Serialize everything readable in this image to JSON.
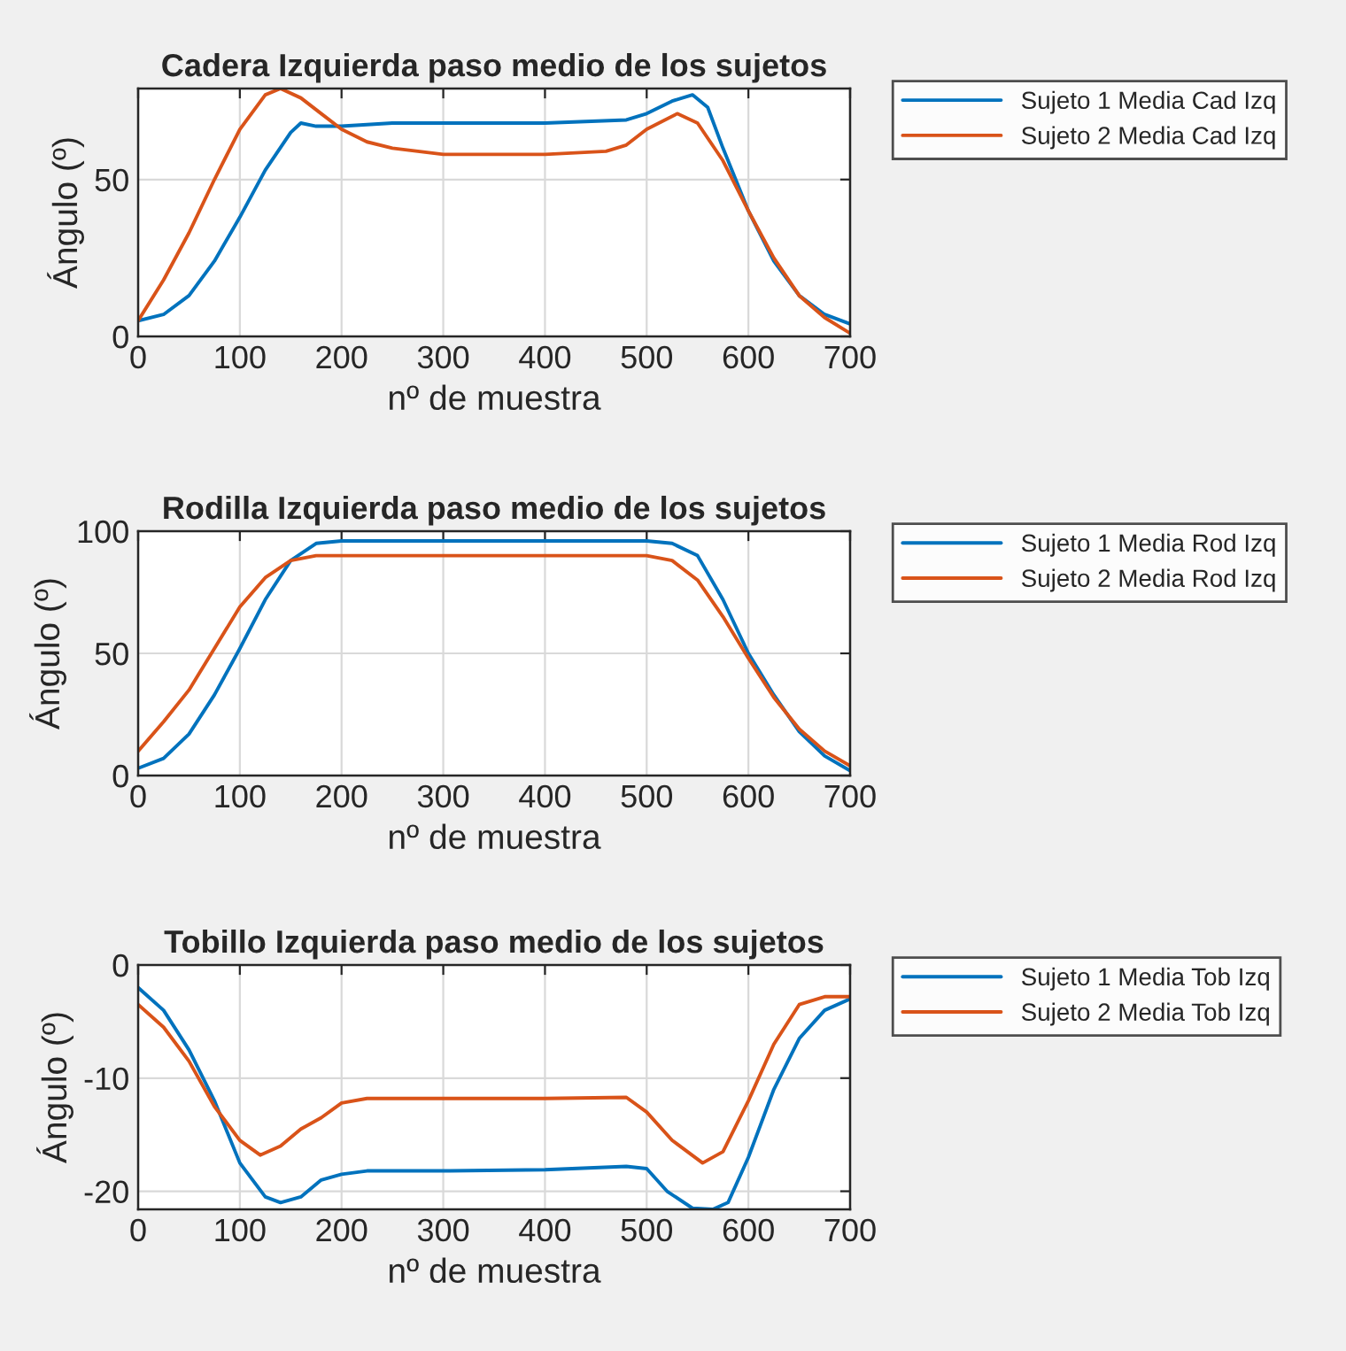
{
  "chart_data": [
    {
      "type": "line",
      "title": "Cadera Izquierda paso medio de los sujetos",
      "xlabel": "nº de muestra",
      "ylabel": "Ángulo (º)",
      "xlim": [
        0,
        700
      ],
      "xticks": [
        0,
        100,
        200,
        300,
        400,
        500,
        600,
        700
      ],
      "ylim": [
        0,
        79
      ],
      "yticks": [
        0,
        50
      ],
      "grid": true,
      "legend": "right",
      "series": [
        {
          "name": "Sujeto 1 Media Cad Izq",
          "color": "#0072bd",
          "x": [
            0,
            25,
            50,
            75,
            100,
            125,
            150,
            160,
            175,
            200,
            250,
            300,
            400,
            480,
            500,
            525,
            545,
            560,
            575,
            600,
            625,
            650,
            675,
            700
          ],
          "values": [
            5,
            7,
            13,
            24,
            38,
            53,
            65,
            68,
            67,
            67,
            68,
            68,
            68,
            69,
            71,
            75,
            77,
            73,
            60,
            40,
            24,
            13,
            7,
            4
          ]
        },
        {
          "name": "Sujeto 2 Media Cad Izq",
          "color": "#d95319",
          "x": [
            0,
            25,
            50,
            75,
            100,
            125,
            140,
            160,
            180,
            200,
            225,
            250,
            300,
            400,
            460,
            480,
            500,
            530,
            550,
            575,
            600,
            625,
            650,
            675,
            700
          ],
          "values": [
            5,
            18,
            33,
            50,
            66,
            77,
            79,
            76,
            71,
            66,
            62,
            60,
            58,
            58,
            59,
            61,
            66,
            71,
            68,
            56,
            40,
            25,
            13,
            6,
            1
          ]
        }
      ]
    },
    {
      "type": "line",
      "title": "Rodilla Izquierda paso medio de los sujetos",
      "xlabel": "nº de muestra",
      "ylabel": "Ángulo (º)",
      "xlim": [
        0,
        700
      ],
      "xticks": [
        0,
        100,
        200,
        300,
        400,
        500,
        600,
        700
      ],
      "ylim": [
        0,
        100
      ],
      "yticks": [
        0,
        50,
        100
      ],
      "grid": true,
      "legend": "right",
      "series": [
        {
          "name": "Sujeto 1 Media Rod Izq",
          "color": "#0072bd",
          "x": [
            0,
            25,
            50,
            75,
            100,
            125,
            150,
            175,
            200,
            300,
            400,
            500,
            525,
            550,
            575,
            600,
            625,
            650,
            675,
            700
          ],
          "values": [
            3,
            7,
            17,
            33,
            52,
            72,
            88,
            95,
            96,
            96,
            96,
            96,
            95,
            90,
            72,
            50,
            33,
            18,
            8,
            2
          ]
        },
        {
          "name": "Sujeto 2 Media Rod Izq",
          "color": "#d95319",
          "x": [
            0,
            25,
            50,
            75,
            100,
            125,
            150,
            175,
            200,
            300,
            400,
            500,
            525,
            550,
            575,
            600,
            625,
            650,
            675,
            700
          ],
          "values": [
            10,
            22,
            35,
            52,
            69,
            81,
            88,
            90,
            90,
            90,
            90,
            90,
            88,
            80,
            65,
            48,
            32,
            19,
            10,
            4
          ]
        }
      ]
    },
    {
      "type": "line",
      "title": "Tobillo Izquierda paso medio de los sujetos",
      "xlabel": "nº de muestra",
      "ylabel": "Ángulo (º)",
      "xlim": [
        0,
        700
      ],
      "xticks": [
        0,
        100,
        200,
        300,
        400,
        500,
        600,
        700
      ],
      "ylim": [
        -21.6,
        0
      ],
      "yticks": [
        -20,
        -10,
        0
      ],
      "grid": true,
      "legend": "right",
      "series": [
        {
          "name": "Sujeto 1 Media Tob Izq",
          "color": "#0072bd",
          "x": [
            0,
            25,
            50,
            75,
            100,
            125,
            140,
            160,
            180,
            200,
            225,
            300,
            400,
            480,
            500,
            520,
            545,
            565,
            580,
            600,
            625,
            650,
            675,
            700
          ],
          "values": [
            -2,
            -4,
            -7.5,
            -12,
            -17.5,
            -20.5,
            -21,
            -20.5,
            -19,
            -18.5,
            -18.2,
            -18.2,
            -18.1,
            -17.8,
            -18,
            -20,
            -21.5,
            -21.6,
            -21,
            -17,
            -11,
            -6.5,
            -4,
            -3
          ]
        },
        {
          "name": "Sujeto 2 Media Tob Izq",
          "color": "#d95319",
          "x": [
            0,
            25,
            50,
            75,
            100,
            120,
            140,
            160,
            180,
            200,
            225,
            300,
            400,
            480,
            500,
            525,
            555,
            575,
            600,
            625,
            650,
            675,
            700
          ],
          "values": [
            -3.5,
            -5.5,
            -8.5,
            -12.5,
            -15.5,
            -16.8,
            -16,
            -14.5,
            -13.5,
            -12.2,
            -11.8,
            -11.8,
            -11.8,
            -11.7,
            -13,
            -15.5,
            -17.5,
            -16.5,
            -12,
            -7,
            -3.5,
            -2.8,
            -2.8
          ]
        }
      ]
    }
  ]
}
